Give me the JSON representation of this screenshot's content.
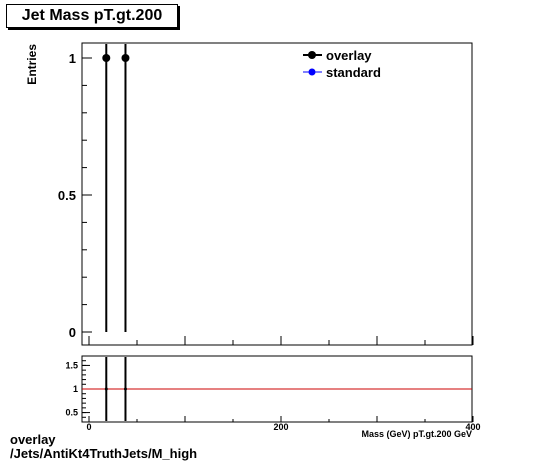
{
  "chart_data": [
    {
      "type": "scatter",
      "title": "Jet Mass pT.gt.200",
      "ylabel": "Entries",
      "xlim": [
        0,
        400
      ],
      "ylim": [
        0,
        1.05
      ],
      "yticks": [
        0,
        0.5,
        1
      ],
      "ytick_labels": [
        "0",
        "0.5",
        "1"
      ],
      "legend_position": "top-right",
      "series": [
        {
          "name": "overlay",
          "color": "#000000",
          "x": [
            18,
            38
          ],
          "y": [
            1,
            1
          ],
          "yerr": [
            1,
            1
          ]
        },
        {
          "name": "standard",
          "color": "#0000ff",
          "x": [],
          "y": []
        }
      ]
    },
    {
      "type": "line",
      "xlim": [
        0,
        400
      ],
      "ylim": [
        0.3,
        1.7
      ],
      "xticks": [
        0,
        200,
        400
      ],
      "xtick_labels": [
        "0",
        "200",
        "400"
      ],
      "yticks": [
        0.5,
        1,
        1.5
      ],
      "ytick_labels": [
        "0.5",
        "1",
        "1.5"
      ],
      "xlabel": "Mass (GeV) pT.gt.200 GeV",
      "reference_line": 1,
      "reference_color": "#cc0000",
      "ratio_points": {
        "x": [
          18,
          38
        ],
        "y": [
          1,
          1
        ]
      }
    }
  ],
  "caption": {
    "line1": "overlay",
    "line2": "/Jets/AntiKt4TruthJets/M_high"
  }
}
